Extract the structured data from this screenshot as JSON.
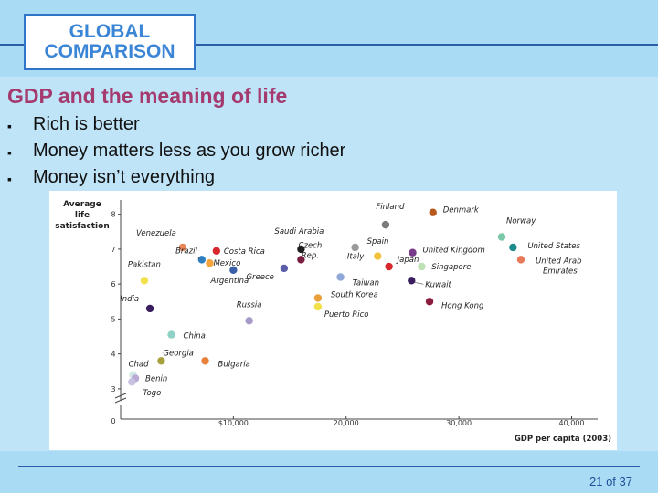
{
  "logo": {
    "line1": "GLOBAL",
    "line2": "COMPARISON"
  },
  "slide_title": "GDP and the meaning of life",
  "bullets": [
    "Rich is better",
    "Money matters less as you grow richer",
    "Money isn’t everything"
  ],
  "bullet_glyph": "▪",
  "page_number": "21 of 37",
  "colors": {
    "title": "#a43a6e",
    "logo_text": "#3a85d6",
    "rule": "#2b5ea8"
  },
  "chart_data": {
    "type": "scatter",
    "title": "",
    "ylabel_lines": [
      "Average",
      "life",
      "satisfaction"
    ],
    "xlabel": "GDP per capita (2003)",
    "xlim": [
      0,
      41500
    ],
    "ylim": [
      2.5,
      8.2
    ],
    "y_ticks": [
      3,
      4,
      5,
      6,
      7,
      8
    ],
    "y_zero_label": "0",
    "x_ticks": [
      {
        "value": 10000,
        "label": "$10,000"
      },
      {
        "value": 20000,
        "label": "20,000"
      },
      {
        "value": 30000,
        "label": "30,000"
      },
      {
        "value": 40000,
        "label": "40,000"
      }
    ],
    "points": [
      {
        "label": "Venezuela",
        "x": 5500,
        "y": 7.05,
        "color": "#e8875a"
      },
      {
        "label": "Brazil",
        "x": 7200,
        "y": 6.7,
        "color": "#2f7fc1"
      },
      {
        "label": "Costa Rica",
        "x": 8500,
        "y": 6.95,
        "color": "#d8282d"
      },
      {
        "label": "Mexico",
        "x": 7900,
        "y": 6.6,
        "color": "#f4a43a"
      },
      {
        "label": "Pakistan",
        "x": 2100,
        "y": 6.1,
        "color": "#f2e04a"
      },
      {
        "label": "Argentina",
        "x": 10000,
        "y": 6.4,
        "color": "#3a5fa8"
      },
      {
        "label": "India",
        "x": 2600,
        "y": 5.3,
        "color": "#3a1d5e"
      },
      {
        "label": "Russia",
        "x": 11400,
        "y": 4.95,
        "color": "#a79ac8"
      },
      {
        "label": "China",
        "x": 4500,
        "y": 4.55,
        "color": "#8fd1c4"
      },
      {
        "label": "Georgia",
        "x": 3600,
        "y": 3.8,
        "color": "#a6a03c"
      },
      {
        "label": "Bulgaria",
        "x": 7500,
        "y": 3.8,
        "color": "#e8823a"
      },
      {
        "label": "Chad",
        "x": 1100,
        "y": 3.4,
        "color": "#cfe8e4"
      },
      {
        "label": "Benin",
        "x": 1300,
        "y": 3.3,
        "color": "#b9a7d4"
      },
      {
        "label": "Togo",
        "x": 1000,
        "y": 3.2,
        "color": "#c8c2e0"
      },
      {
        "label": "Saudi Arabia",
        "x": 16000,
        "y": 7.0,
        "color": "#1e1e1e"
      },
      {
        "label": "Czech Rep.",
        "x": 16000,
        "y": 6.7,
        "color": "#7a1d3e"
      },
      {
        "label": "Greece",
        "x": 14500,
        "y": 6.45,
        "color": "#5a5fa8"
      },
      {
        "label": "South Korea",
        "x": 17500,
        "y": 5.6,
        "color": "#e8a03a"
      },
      {
        "label": "Puerto Rico",
        "x": 17500,
        "y": 5.35,
        "color": "#f2e04a"
      },
      {
        "label": "Taiwan",
        "x": 19500,
        "y": 6.2,
        "color": "#8fa8d8"
      },
      {
        "label": "Finland",
        "x": 23500,
        "y": 7.7,
        "color": "#7a7a7a"
      },
      {
        "label": "Spain",
        "x": 20800,
        "y": 7.05,
        "color": "#9a9a9a"
      },
      {
        "label": "Italy",
        "x": 22800,
        "y": 6.8,
        "color": "#f2c23a"
      },
      {
        "label": "Japan",
        "x": 23800,
        "y": 6.5,
        "color": "#d8282d"
      },
      {
        "label": "Denmark",
        "x": 27700,
        "y": 8.05,
        "color": "#b85a1e"
      },
      {
        "label": "United Kingdom",
        "x": 25900,
        "y": 6.9,
        "color": "#7a3a8c"
      },
      {
        "label": "Singapore",
        "x": 26700,
        "y": 6.5,
        "color": "#bde0b4"
      },
      {
        "label": "Kuwait",
        "x": 25800,
        "y": 6.1,
        "color": "#3a1d5e"
      },
      {
        "label": "Hong Kong",
        "x": 27400,
        "y": 5.5,
        "color": "#8a1d3e"
      },
      {
        "label": "Norway",
        "x": 33800,
        "y": 7.35,
        "color": "#7ac8a8"
      },
      {
        "label": "United States",
        "x": 34800,
        "y": 7.05,
        "color": "#1e8a8c"
      },
      {
        "label": "United Arab Emirates",
        "x": 35500,
        "y": 6.7,
        "color": "#e87a5a"
      }
    ]
  }
}
